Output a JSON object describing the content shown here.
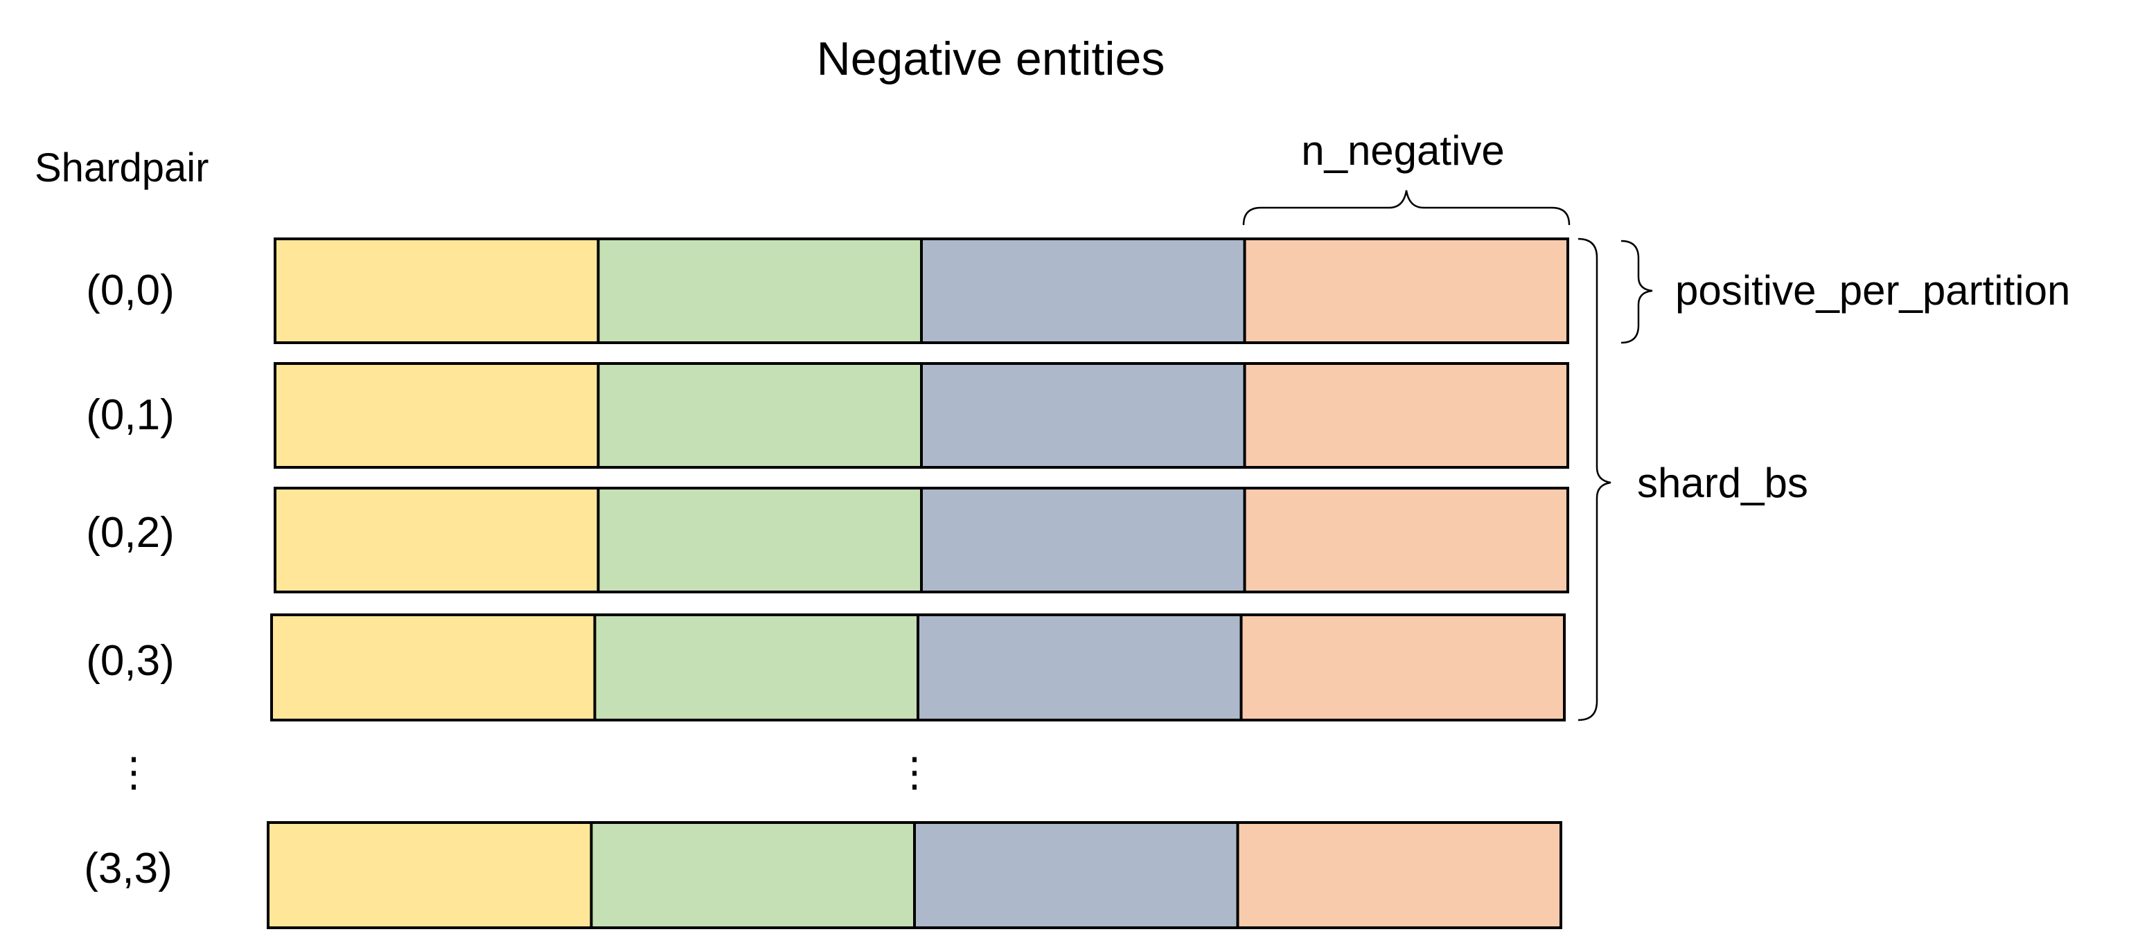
{
  "title": "Negative entities",
  "row_axis_label": "Shardpair",
  "rows": [
    {
      "label": "(0,0)"
    },
    {
      "label": "(0,1)"
    },
    {
      "label": "(0,2)"
    },
    {
      "label": "(0,3)"
    },
    {
      "label": "(3,3)"
    }
  ],
  "ellipsis": "⋮",
  "cells_per_row": 4,
  "cell_colors": [
    "#FFE699",
    "#C5E0B4",
    "#ADB9CA",
    "#F8CBAD"
  ],
  "annotations": {
    "n_negative": "n_negative",
    "positive_per_partition": "positive_per_partition",
    "shard_bs": "shard_bs"
  }
}
